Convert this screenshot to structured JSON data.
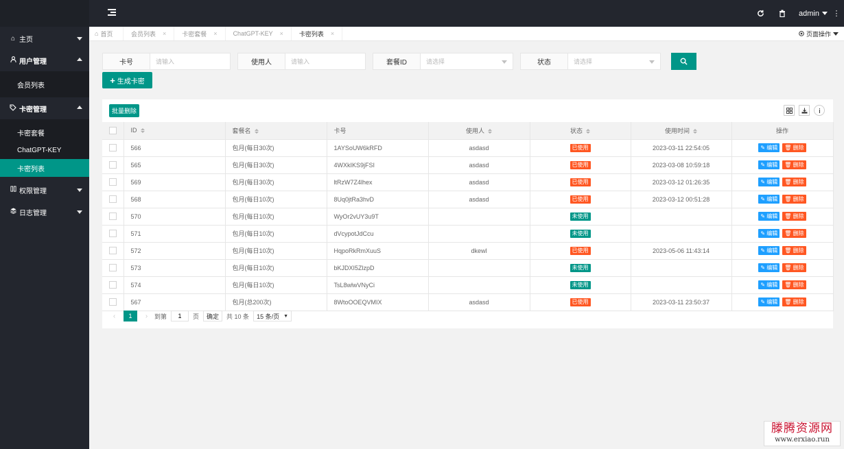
{
  "header": {
    "user": "admin"
  },
  "sidebar": {
    "items": [
      {
        "label": "主页",
        "icon": "home-icon"
      },
      {
        "label": "用户管理",
        "icon": "user-icon",
        "children": [
          "会员列表"
        ]
      },
      {
        "label": "卡密管理",
        "icon": "tag-icon",
        "children": [
          "卡密套餐",
          "ChatGPT-KEY",
          "卡密列表"
        ]
      },
      {
        "label": "权限管理",
        "icon": "permission-icon"
      },
      {
        "label": "日志管理",
        "icon": "log-icon"
      }
    ],
    "active": "卡密列表"
  },
  "tabs": {
    "home": "首页",
    "items": [
      "会员列表",
      "卡密套餐",
      "ChatGPT-KEY",
      "卡密列表"
    ],
    "active": "卡密列表",
    "page_ops": "页面操作"
  },
  "search": {
    "card_label": "卡号",
    "card_placeholder": "请输入",
    "user_label": "使用人",
    "user_placeholder": "请输入",
    "plan_label": "套餐ID",
    "plan_placeholder": "请选择",
    "status_label": "状态",
    "status_placeholder": "请选择"
  },
  "actions": {
    "generate": "生成卡密",
    "batch_delete": "批量删除"
  },
  "table": {
    "columns": [
      "ID",
      "套餐名",
      "卡号",
      "使用人",
      "状态",
      "使用时间",
      "操作"
    ],
    "edit_label": "编辑",
    "delete_label": "删除",
    "rows": [
      {
        "id": "566",
        "plan": "包月(每日30次)",
        "card": "1AYSoUW6kRFD",
        "user": "asdasd",
        "status": "已使用",
        "used": true,
        "time": "2023-03-11 22:54:05"
      },
      {
        "id": "565",
        "plan": "包月(每日30次)",
        "card": "4WXkIKS9jFSI",
        "user": "asdasd",
        "status": "已使用",
        "used": true,
        "time": "2023-03-08 10:59:18"
      },
      {
        "id": "569",
        "plan": "包月(每日30次)",
        "card": "ltRzW7Z4lhex",
        "user": "asdasd",
        "status": "已使用",
        "used": true,
        "time": "2023-03-12 01:26:35"
      },
      {
        "id": "568",
        "plan": "包月(每日10次)",
        "card": "8Uq0jtRa3hvD",
        "user": "asdasd",
        "status": "已使用",
        "used": true,
        "time": "2023-03-12 00:51:28"
      },
      {
        "id": "570",
        "plan": "包月(每日10次)",
        "card": "WyOr2vUY3u9T",
        "user": "",
        "status": "未使用",
        "used": false,
        "time": ""
      },
      {
        "id": "571",
        "plan": "包月(每日10次)",
        "card": "dVcypotJdCcu",
        "user": "",
        "status": "未使用",
        "used": false,
        "time": ""
      },
      {
        "id": "572",
        "plan": "包月(每日10次)",
        "card": "HqpoRkRmXuuS",
        "user": "dkewl",
        "status": "已使用",
        "used": true,
        "time": "2023-05-06 11:43:14"
      },
      {
        "id": "573",
        "plan": "包月(每日10次)",
        "card": "bKJDXI5ZlzpD",
        "user": "",
        "status": "未使用",
        "used": false,
        "time": ""
      },
      {
        "id": "574",
        "plan": "包月(每日10次)",
        "card": "TsL8wlwVNyCi",
        "user": "",
        "status": "未使用",
        "used": false,
        "time": ""
      },
      {
        "id": "567",
        "plan": "包月(总200次)",
        "card": "8WtoOOEQVMIX",
        "user": "asdasd",
        "status": "已使用",
        "used": true,
        "time": "2023-03-11 23:50:37"
      }
    ]
  },
  "pager": {
    "current": "1",
    "goto_label": "到第",
    "goto_value": "1",
    "page_unit": "页",
    "confirm": "确定",
    "total": "共 10 条",
    "page_size": "15 条/页"
  },
  "watermark": {
    "line1": "滕腾资源网",
    "line2": "www.erxiao.run"
  },
  "colors": {
    "accent": "#009688",
    "danger": "#ff5722",
    "info": "#1e9fff",
    "dark": "#23262e"
  }
}
